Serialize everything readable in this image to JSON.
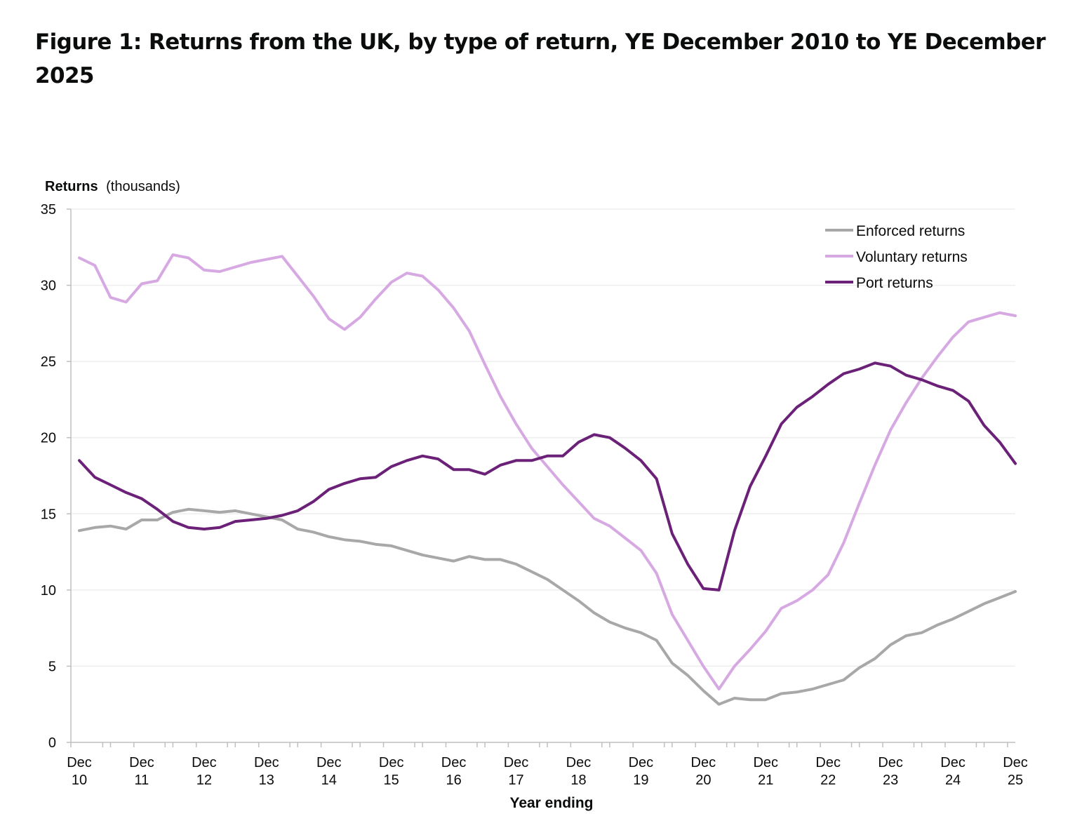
{
  "title": "Figure 1: Returns from the UK, by type of return, YE December 2010 to YE December 2025",
  "colors": {
    "enforced": "#a8a8a8",
    "voluntary": "#d7a9e3",
    "port": "#6b2178",
    "grid": "#eeeeee",
    "axis": "#bfbfbf"
  },
  "chart_data": {
    "type": "line",
    "title": "Figure 1: Returns from the UK, by type of return, YE December 2010 to YE December 2025",
    "ylabel_bold": "Returns",
    "ylabel_rest": "(thousands)",
    "xlabel": "Year ending",
    "ylim": [
      0,
      35
    ],
    "yticks": [
      "0",
      "5",
      "10",
      "15",
      "20",
      "25",
      "30",
      "35"
    ],
    "grid": true,
    "legend_position": "top-right",
    "x_tick_labels": [
      [
        "Dec",
        "10"
      ],
      [
        "Dec",
        "11"
      ],
      [
        "Dec",
        "12"
      ],
      [
        "Dec",
        "13"
      ],
      [
        "Dec",
        "14"
      ],
      [
        "Dec",
        "15"
      ],
      [
        "Dec",
        "16"
      ],
      [
        "Dec",
        "17"
      ],
      [
        "Dec",
        "18"
      ],
      [
        "Dec",
        "19"
      ],
      [
        "Dec",
        "20"
      ],
      [
        "Dec",
        "21"
      ],
      [
        "Dec",
        "22"
      ],
      [
        "Dec",
        "23"
      ],
      [
        "Dec",
        "24"
      ],
      [
        "Dec",
        "25"
      ]
    ],
    "x_points": 61,
    "series": [
      {
        "name": "Enforced returns",
        "color": "#a8a8a8",
        "values": [
          13.9,
          14.1,
          14.2,
          14.0,
          14.6,
          14.6,
          15.1,
          15.3,
          15.2,
          15.1,
          15.2,
          15.0,
          14.8,
          14.6,
          14.0,
          13.8,
          13.5,
          13.3,
          13.2,
          13.0,
          12.9,
          12.6,
          12.3,
          12.1,
          11.9,
          12.2,
          12.0,
          12.0,
          11.7,
          11.2,
          10.7,
          10.0,
          9.3,
          8.5,
          7.9,
          7.5,
          7.2,
          6.7,
          5.2,
          4.4,
          3.4,
          2.5,
          2.9,
          2.8,
          2.8,
          3.2,
          3.3,
          3.5,
          3.8,
          4.1,
          4.9,
          5.5,
          6.4,
          7.0,
          7.2,
          7.7,
          8.1,
          8.6,
          9.1,
          9.5,
          9.9
        ]
      },
      {
        "name": "Voluntary returns",
        "color": "#d7a9e3",
        "values": [
          31.8,
          31.3,
          29.2,
          28.9,
          30.1,
          30.3,
          32.0,
          31.8,
          31.0,
          30.9,
          31.2,
          31.5,
          31.7,
          31.9,
          30.6,
          29.3,
          27.8,
          27.1,
          27.9,
          29.1,
          30.2,
          30.8,
          30.6,
          29.7,
          28.5,
          27.0,
          24.8,
          22.7,
          20.9,
          19.3,
          18.1,
          16.9,
          15.8,
          14.7,
          14.2,
          13.4,
          12.6,
          11.1,
          8.4,
          6.7,
          5.0,
          3.5,
          5.0,
          6.1,
          7.3,
          8.8,
          9.3,
          10.0,
          11.0,
          13.1,
          15.7,
          18.2,
          20.5,
          22.3,
          23.9,
          25.3,
          26.6,
          27.6,
          27.9,
          28.2,
          28.0
        ]
      },
      {
        "name": "Port returns",
        "color": "#6b2178",
        "values": [
          18.5,
          17.4,
          16.9,
          16.4,
          16.0,
          15.3,
          14.5,
          14.1,
          14.0,
          14.1,
          14.5,
          14.6,
          14.7,
          14.9,
          15.2,
          15.8,
          16.6,
          17.0,
          17.3,
          17.4,
          18.1,
          18.5,
          18.8,
          18.6,
          17.9,
          17.9,
          17.6,
          18.2,
          18.5,
          18.5,
          18.8,
          18.8,
          19.7,
          20.2,
          20.0,
          19.3,
          18.5,
          17.3,
          13.7,
          11.7,
          10.1,
          10.0,
          13.9,
          16.8,
          18.8,
          20.9,
          22.0,
          22.7,
          23.5,
          24.2,
          24.5,
          24.9,
          24.7,
          24.1,
          23.8,
          23.4,
          23.1,
          22.4,
          20.8,
          19.7,
          18.3
        ]
      }
    ]
  }
}
